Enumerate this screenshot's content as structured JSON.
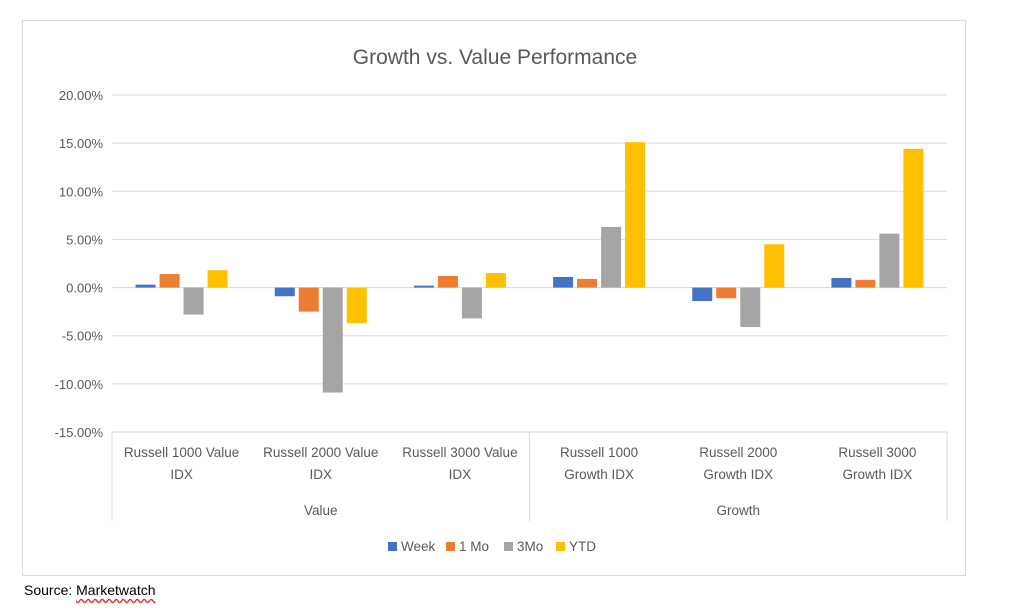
{
  "chart_data": {
    "type": "bar",
    "title": "Growth vs. Value Performance",
    "xlabel": "",
    "ylabel": "",
    "ylim": [
      -15,
      20
    ],
    "yticks": [
      20,
      15,
      10,
      5,
      0,
      -5,
      -10,
      -15
    ],
    "ytick_labels": [
      "20.00%",
      "15.00%",
      "10.00%",
      "5.00%",
      "0.00%",
      "-5.00%",
      "-10.00%",
      "-15.00%"
    ],
    "categories": [
      {
        "label_lines": [
          "Russell 1000 Value",
          "IDX"
        ],
        "group": "Value"
      },
      {
        "label_lines": [
          "Russell 2000 Value",
          "IDX"
        ],
        "group": "Value"
      },
      {
        "label_lines": [
          "Russell 3000 Value",
          "IDX"
        ],
        "group": "Value"
      },
      {
        "label_lines": [
          "Russell 1000",
          "Growth IDX"
        ],
        "group": "Growth"
      },
      {
        "label_lines": [
          "Russell 2000",
          "Growth IDX"
        ],
        "group": "Growth"
      },
      {
        "label_lines": [
          "Russell 3000",
          "Growth IDX"
        ],
        "group": "Growth"
      }
    ],
    "groups": [
      "Value",
      "Growth"
    ],
    "series": [
      {
        "name": "Week",
        "color": "#4472c4",
        "values": [
          0.3,
          -0.9,
          0.2,
          1.1,
          -1.4,
          1.0
        ]
      },
      {
        "name": "1 Mo",
        "color": "#ed7d31",
        "values": [
          1.4,
          -2.5,
          1.2,
          0.9,
          -1.1,
          0.8
        ]
      },
      {
        "name": "3Mo",
        "color": "#a5a5a5",
        "values": [
          -2.8,
          -10.9,
          -3.2,
          6.3,
          -4.1,
          5.6
        ]
      },
      {
        "name": "YTD",
        "color": "#ffc000",
        "values": [
          1.8,
          -3.7,
          1.5,
          15.1,
          4.5,
          14.4
        ]
      }
    ],
    "grid": true,
    "legend": "bottom"
  },
  "source": {
    "prefix": "Source: ",
    "name": "Marketwatch"
  }
}
